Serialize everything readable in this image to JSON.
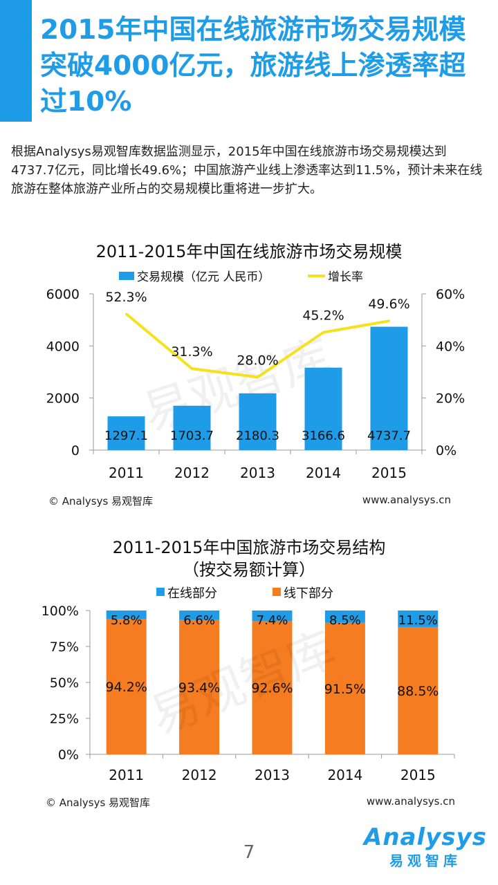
{
  "header": {
    "accent_color": "#1f9ce8",
    "title": "2015年中国在线旅游市场交易规模突破4000亿元，旅游线上渗透率超过10%"
  },
  "intro_text": "根据Analysys易观智库数据监测显示，2015年中国在线旅游市场交易规模达到4737.7亿元，同比增长49.6%；中国旅游产业线上渗透率达到11.5%，预计未来在线旅游在整体旅游产业所占的交易规模比重将进一步扩大。",
  "chart_data": [
    {
      "type": "bar+line",
      "title": "2011-2015年中国在线旅游市场交易规模",
      "categories": [
        "2011",
        "2012",
        "2013",
        "2014",
        "2015"
      ],
      "legend": [
        {
          "label": "交易规模（亿元 人民币）",
          "color": "#1f9ce8",
          "kind": "bar"
        },
        {
          "label": "增长率",
          "color": "#f5e21c",
          "kind": "line"
        }
      ],
      "series": [
        {
          "name": "交易规模（亿元 人民币）",
          "axis": "left",
          "values": [
            1297.1,
            1703.7,
            2180.3,
            3166.6,
            4737.7
          ],
          "labels": [
            "1297.1",
            "1703.7",
            "2180.3",
            "3166.6",
            "4737.7"
          ]
        },
        {
          "name": "增长率",
          "axis": "right",
          "values": [
            52.3,
            31.3,
            28.0,
            45.2,
            49.6
          ],
          "labels": [
            "52.3%",
            "31.3%",
            "28.0%",
            "45.2%",
            "49.6%"
          ]
        }
      ],
      "left_axis": {
        "range": [
          0,
          6000
        ],
        "ticks": [
          "0",
          "2000",
          "4000",
          "6000"
        ],
        "tick_values": [
          0,
          2000,
          4000,
          6000
        ]
      },
      "right_axis": {
        "range": [
          0,
          60
        ],
        "ticks": [
          "0%",
          "20%",
          "40%",
          "60%"
        ],
        "tick_values": [
          0,
          20,
          40,
          60
        ]
      },
      "watermark": "易观智库",
      "source": "© Analysys  易观智库",
      "url": "www.analysys.cn"
    },
    {
      "type": "stacked-bar-100",
      "title": "2011-2015年中国旅游市场交易结构",
      "subtitle": "（按交易额计算）",
      "categories": [
        "2011",
        "2012",
        "2013",
        "2014",
        "2015"
      ],
      "legend": [
        {
          "label": "在线部分",
          "color": "#1f9ce8"
        },
        {
          "label": "线下部分",
          "color": "#f57c20"
        }
      ],
      "series": [
        {
          "name": "线下部分",
          "values": [
            94.2,
            93.4,
            92.6,
            91.5,
            88.5
          ],
          "labels": [
            "94.2%",
            "93.4%",
            "92.6%",
            "91.5%",
            "88.5%"
          ]
        },
        {
          "name": "在线部分",
          "values": [
            5.8,
            6.6,
            7.4,
            8.5,
            11.5
          ],
          "labels": [
            "5.8%",
            "6.6%",
            "7.4%",
            "8.5%",
            "11.5%"
          ]
        }
      ],
      "y_axis": {
        "range": [
          0,
          100
        ],
        "ticks": [
          "0%",
          "25%",
          "50%",
          "75%",
          "100%"
        ],
        "tick_values": [
          0,
          25,
          50,
          75,
          100
        ]
      },
      "watermark": "易观智库",
      "source": "© Analysys  易观智库",
      "url": "www.analysys.cn"
    }
  ],
  "page_number": "7",
  "logo": {
    "wordmark": "Analysys",
    "chinese": "易观智库"
  }
}
